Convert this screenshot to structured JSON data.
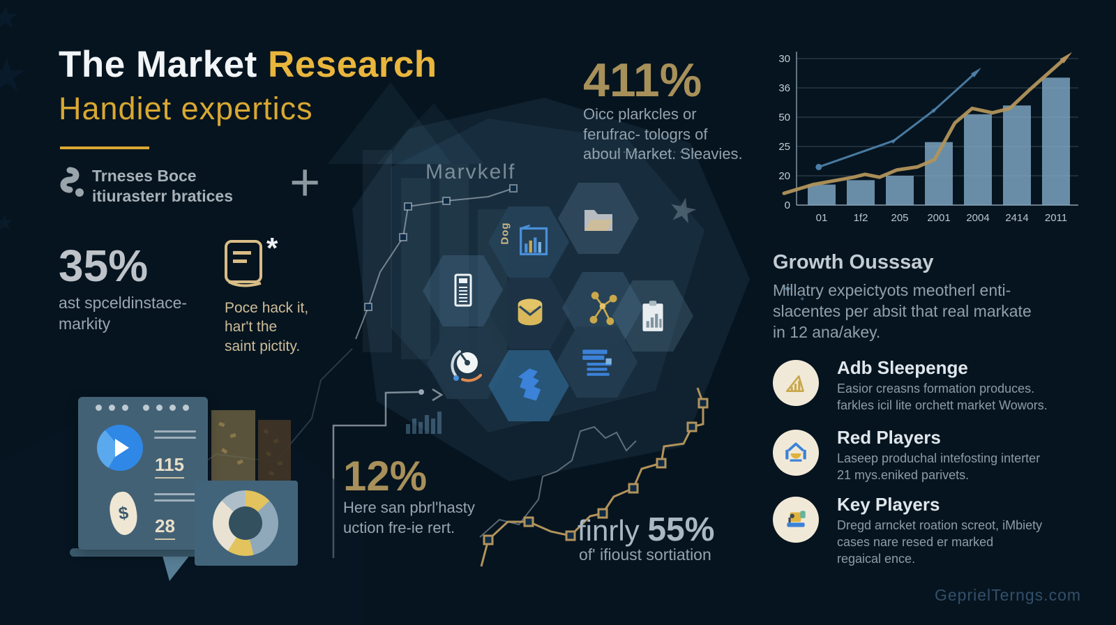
{
  "header": {
    "title_white": "The Market ",
    "title_gold": "Research",
    "subtitle": "Handiet expertics"
  },
  "intro": {
    "line1": "Trneses Boce",
    "line2": "itiurasterr bratices",
    "plus": "+"
  },
  "stat35": {
    "value": "35%",
    "label": "ast spceldinstace-\nmarkity"
  },
  "book": {
    "asterisk": "*",
    "note": "Poce hack it,\nhar't the\nsaint pictity."
  },
  "stat411": {
    "value": "411%",
    "label": "Oicc plarkcles or\nferufrac- tologrs of\naboul Market. Sleavies."
  },
  "center": {
    "label": "Marvkelf",
    "chart_icon_text": "Dog"
  },
  "stat12": {
    "value": "12%",
    "label": "Here san pbrl'hasty\nuction fre-ie rert."
  },
  "stat55": {
    "prefix": "finrly ",
    "value": "55%",
    "label": "of' ifioust sortiation"
  },
  "growth": {
    "heading": "Growth Ousssay",
    "body": "Millatry expeictyots  meotherl enti-\nslacentes per absit that real markate\nin 12 ana/akey."
  },
  "players": [
    {
      "title": "Adb Sleepenge",
      "desc": "Easior creasns formation produces.\nfarkles icil lite orchett market Wowors."
    },
    {
      "title": "Red Players",
      "desc": "Laseep produchal intefosting interter\n21 mys.eniked parivets."
    },
    {
      "title": "Key Players",
      "desc": "Dregd arncket roation screot, iMbiety\ncases nare resed er marked\nregaical ence."
    }
  ],
  "browser": {
    "num1": "115",
    "num2": "28",
    "currency": "$"
  },
  "watermark": "GeprielTerngs.com",
  "chart_data": {
    "type": "bar",
    "x_labels": [
      "01",
      "1f2",
      "205",
      "2001",
      "2004",
      "2414",
      "2011"
    ],
    "y_tick_labels_top_to_bottom": [
      "30",
      "36",
      "50",
      "25",
      "20",
      "0"
    ],
    "bar_values_pct_of_plot_height": [
      14,
      17,
      20,
      43,
      62,
      68,
      87
    ],
    "bar_color": "#7fa8c4",
    "grid": true,
    "series": [
      {
        "name": "gold-trend-line",
        "color": "#b2935b",
        "points_pct": [
          [
            0,
            8
          ],
          [
            10,
            14
          ],
          [
            24,
            19
          ],
          [
            28,
            21
          ],
          [
            33,
            19
          ],
          [
            39,
            24
          ],
          [
            46,
            26
          ],
          [
            52,
            31
          ],
          [
            59,
            56
          ],
          [
            65,
            66
          ],
          [
            72,
            63
          ],
          [
            78,
            66
          ],
          [
            85,
            79
          ],
          [
            97,
            100
          ]
        ]
      },
      {
        "name": "blue-arrow-line",
        "color": "#4c7fa8",
        "points_pct": [
          [
            12,
            26
          ],
          [
            38,
            44
          ],
          [
            52,
            65
          ],
          [
            66,
            90
          ]
        ]
      }
    ]
  }
}
